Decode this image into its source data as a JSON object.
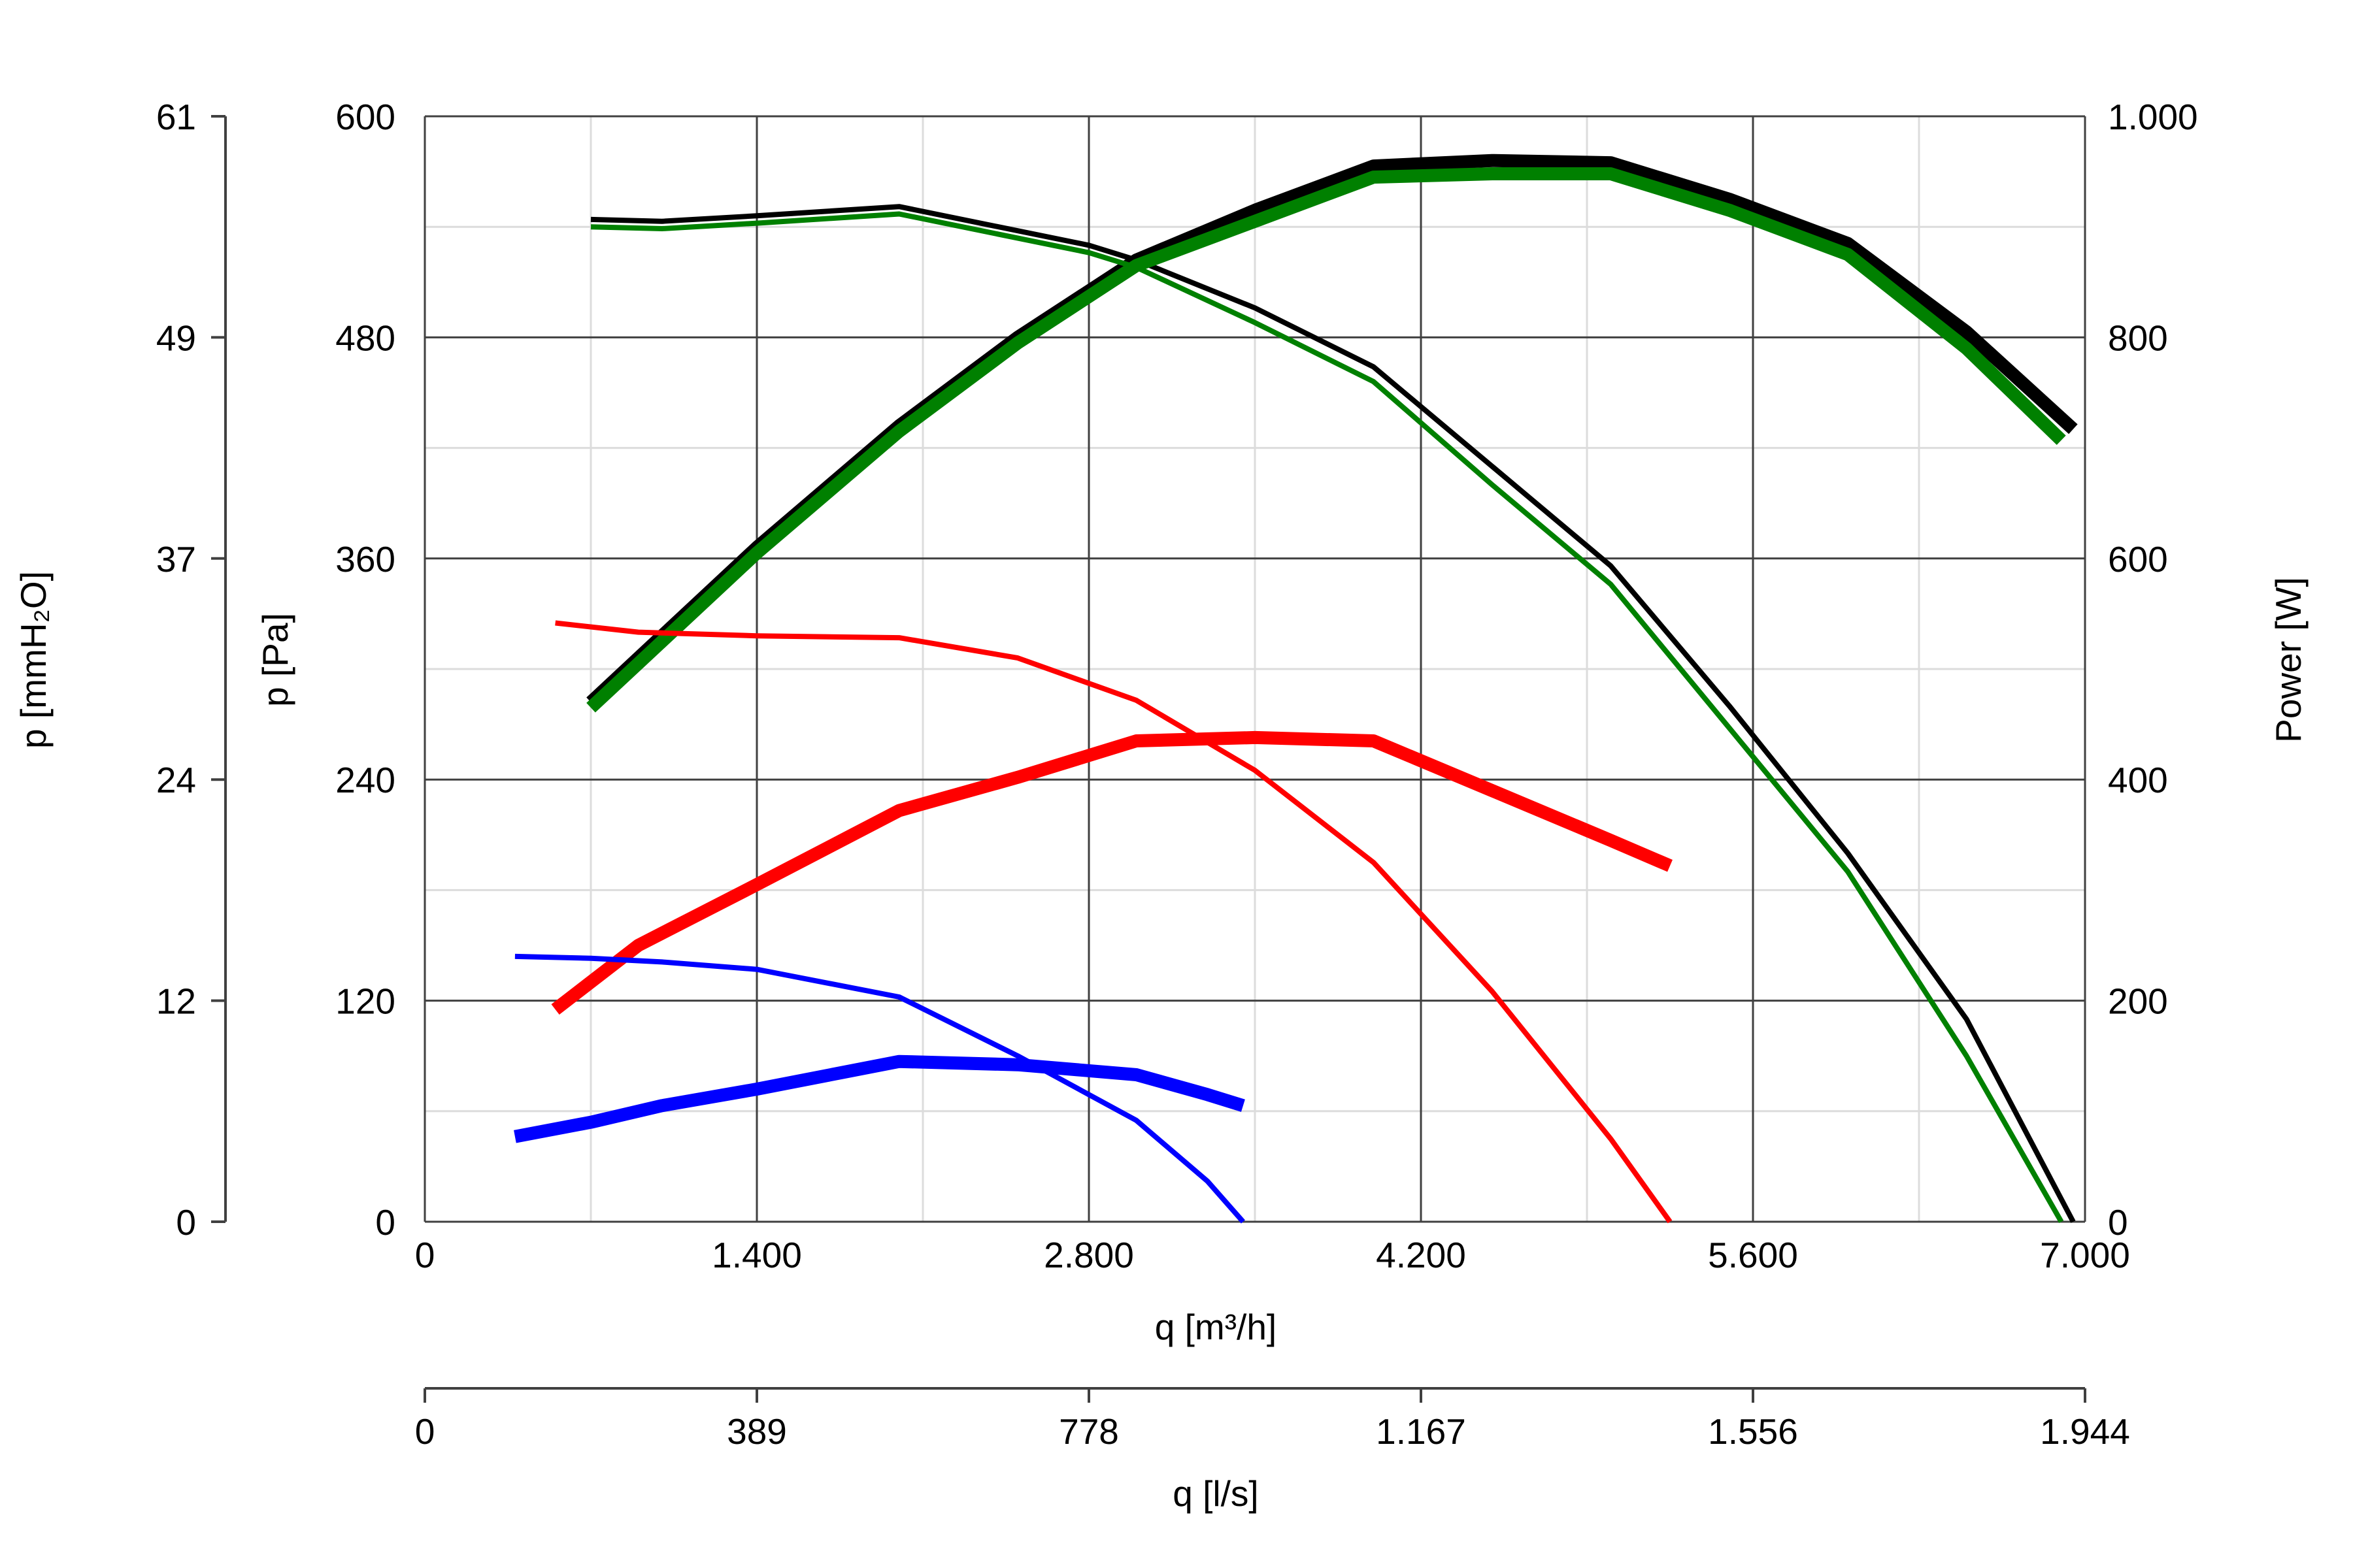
{
  "chart_data": {
    "type": "line",
    "title": "",
    "x_bottom": {
      "label": "q [m³/h]",
      "range": [
        0,
        7000
      ],
      "ticks": [
        0,
        1400,
        2800,
        4200,
        5600,
        7000
      ],
      "tick_labels": [
        "0",
        "1.400",
        "2.800",
        "4.200",
        "5.600",
        "7.000"
      ]
    },
    "x_secondary": {
      "label": "q [l/s]",
      "range": [
        0,
        1944
      ],
      "tick_labels": [
        "0",
        "389",
        "778",
        "1.167",
        "1.556",
        "1.944"
      ]
    },
    "y_left": {
      "label": "p [Pa]",
      "range": [
        0,
        600
      ],
      "ticks": [
        0,
        120,
        240,
        360,
        480,
        600
      ],
      "tick_labels": [
        "0",
        "120",
        "240",
        "360",
        "480",
        "600"
      ]
    },
    "y_left_outer": {
      "label": "p [mmH₂O]",
      "range": [
        0,
        61
      ],
      "tick_labels": [
        "0",
        "12",
        "24",
        "37",
        "49",
        "61"
      ]
    },
    "y_right": {
      "label": "Power [W]",
      "range": [
        0,
        1000
      ],
      "ticks": [
        0,
        200,
        400,
        600,
        800,
        1000
      ],
      "tick_labels": [
        "0",
        "200",
        "400",
        "600",
        "800",
        "1.000"
      ]
    },
    "grid": true,
    "series": [
      {
        "name": "pressure-black",
        "axis": "y_left",
        "color": "#000000",
        "width": "thin",
        "x": [
          700,
          1000,
          1400,
          2000,
          2800,
          3000,
          3500,
          4000,
          4500,
          5000,
          5500,
          6000,
          6500,
          6950
        ],
        "y": [
          544,
          543,
          546,
          551,
          530,
          522,
          496,
          464,
          410,
          356,
          280,
          200,
          110,
          0
        ]
      },
      {
        "name": "power-black",
        "axis": "y_right",
        "color": "#000000",
        "width": "thick",
        "x": [
          700,
          1000,
          1400,
          2000,
          2500,
          3000,
          3500,
          4000,
          4500,
          5000,
          5500,
          6000,
          6500,
          6950
        ],
        "y": [
          470,
          530,
          610,
          720,
          800,
          870,
          915,
          955,
          960,
          958,
          925,
          885,
          805,
          717
        ]
      },
      {
        "name": "pressure-green",
        "axis": "y_left",
        "color": "#008000",
        "width": "thin",
        "x": [
          700,
          1000,
          1400,
          2000,
          2800,
          3000,
          3500,
          4000,
          4500,
          5000,
          5500,
          6000,
          6500,
          6900
        ],
        "y": [
          540,
          539,
          542,
          547,
          526,
          518,
          488,
          456,
          400,
          346,
          268,
          190,
          90,
          0
        ]
      },
      {
        "name": "power-green",
        "axis": "y_right",
        "color": "#008000",
        "width": "thick",
        "x": [
          700,
          1000,
          1400,
          2000,
          2500,
          3000,
          3500,
          4000,
          4500,
          5000,
          5500,
          6000,
          6500,
          6900
        ],
        "y": [
          465,
          525,
          605,
          715,
          795,
          865,
          905,
          945,
          948,
          948,
          915,
          875,
          790,
          707
        ]
      },
      {
        "name": "pressure-red",
        "axis": "y_left",
        "color": "#ff0000",
        "width": "thin",
        "x": [
          550,
          900,
          1400,
          2000,
          2500,
          3000,
          3500,
          4000,
          4500,
          5000,
          5250
        ],
        "y": [
          325,
          320,
          318,
          317,
          306,
          283,
          245,
          195,
          125,
          45,
          0
        ]
      },
      {
        "name": "power-red",
        "axis": "y_right",
        "color": "#ff0000",
        "width": "thick",
        "x": [
          550,
          900,
          1400,
          2000,
          2500,
          3000,
          3500,
          4000,
          4500,
          5000,
          5250
        ],
        "y": [
          192,
          250,
          305,
          372,
          402,
          435,
          438,
          435,
          390,
          345,
          322
        ]
      },
      {
        "name": "pressure-blue",
        "axis": "y_left",
        "color": "#0000ff",
        "width": "thin",
        "x": [
          380,
          700,
          1000,
          1400,
          2000,
          2500,
          3000,
          3300,
          3450
        ],
        "y": [
          144,
          143,
          141,
          137,
          122,
          90,
          55,
          22,
          0
        ]
      },
      {
        "name": "power-blue",
        "axis": "y_right",
        "color": "#0000ff",
        "width": "thick",
        "x": [
          380,
          700,
          1000,
          1400,
          2000,
          2500,
          3000,
          3300,
          3450
        ],
        "y": [
          77,
          90,
          105,
          120,
          145,
          142,
          133,
          115,
          105
        ]
      }
    ]
  }
}
